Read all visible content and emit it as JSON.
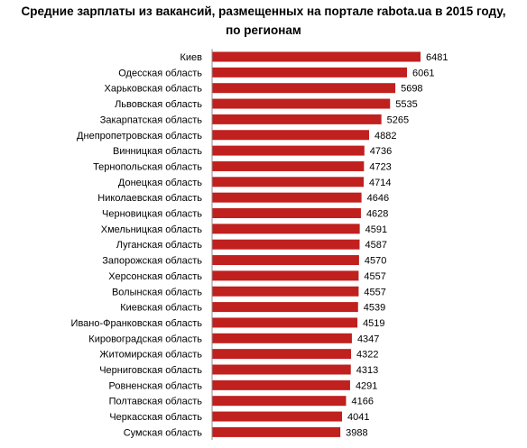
{
  "chart_data": {
    "type": "bar",
    "orientation": "horizontal",
    "title": "Средние зарплаты из вакансий, размещенных на портале rabota.ua в 2015 году,",
    "subtitle": "по регионам",
    "xlabel": "",
    "ylabel": "",
    "xlim": [
      0,
      6481
    ],
    "grid": false,
    "legend": "none",
    "bar_color": "#C0201E",
    "categories": [
      "Киев",
      "Одесская область",
      "Харьковская область",
      "Львовская область",
      "Закарпатская область",
      "Днепропетровская область",
      "Винницкая область",
      "Тернопольская область",
      "Донецкая область",
      "Николаевская область",
      "Черновицкая область",
      "Хмельницкая область",
      "Луганская область",
      "Запорожская область",
      "Херсонская область",
      "Волынская область",
      "Киевская область",
      "Ивано-Франковская область",
      "Кировоградская область",
      "Житомирская область",
      "Черниговская область",
      "Ровненская область",
      "Полтавская область",
      "Черкасская область",
      "Сумская область"
    ],
    "values": [
      6481,
      6061,
      5698,
      5535,
      5265,
      4882,
      4736,
      4723,
      4714,
      4646,
      4628,
      4591,
      4587,
      4570,
      4557,
      4557,
      4539,
      4519,
      4347,
      4322,
      4313,
      4291,
      4166,
      4041,
      3988
    ]
  }
}
